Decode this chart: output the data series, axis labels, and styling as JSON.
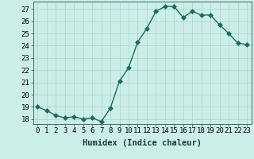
{
  "x": [
    0,
    1,
    2,
    3,
    4,
    5,
    6,
    7,
    8,
    9,
    10,
    11,
    12,
    13,
    14,
    15,
    16,
    17,
    18,
    19,
    20,
    21,
    22,
    23
  ],
  "y": [
    19.0,
    18.7,
    18.3,
    18.1,
    18.2,
    18.0,
    18.1,
    17.8,
    18.9,
    21.1,
    22.2,
    24.3,
    25.4,
    26.8,
    27.2,
    27.2,
    26.3,
    26.8,
    26.5,
    26.5,
    25.7,
    25.0,
    24.2,
    24.1
  ],
  "line_color": "#1a6b5e",
  "bg_color": "#cceee8",
  "grid_color": "#b0d8d0",
  "xlabel": "Humidex (Indice chaleur)",
  "ylabel_ticks": [
    18,
    19,
    20,
    21,
    22,
    23,
    24,
    25,
    26,
    27
  ],
  "ylim": [
    17.6,
    27.6
  ],
  "xlim": [
    -0.5,
    23.5
  ],
  "xlabel_fontsize": 7.5,
  "tick_fontsize": 6.5,
  "line_width": 1.0,
  "marker_size": 3.0
}
